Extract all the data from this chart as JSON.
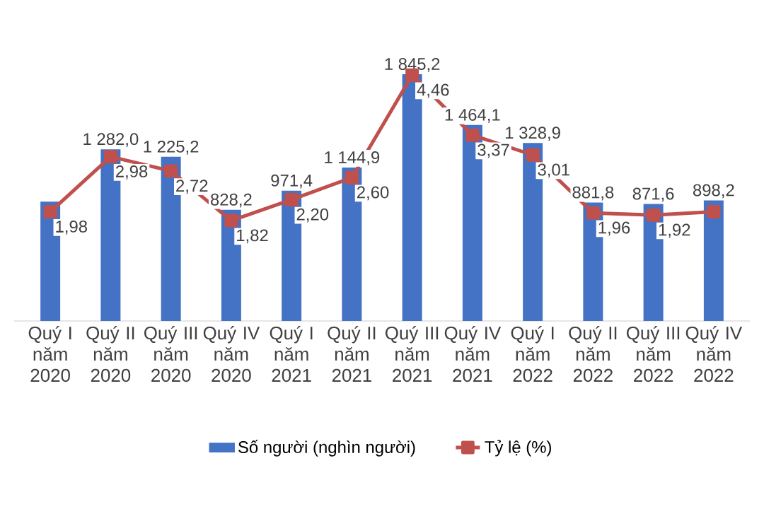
{
  "chart_data": {
    "type": "bar",
    "categories": [
      "Quý I năm 2020",
      "Quý II năm 2020",
      "Quý III năm 2020",
      "Quý IV năm 2020",
      "Quý I năm 2021",
      "Quý II năm 2021",
      "Quý III năm 2021",
      "Quý IV năm 2021",
      "Quý I năm 2022",
      "Quý II năm 2022",
      "Quý III năm 2022",
      "Quý IV năm 2022"
    ],
    "series": [
      {
        "name": "Số người (nghìn người)",
        "color": "#4472c4",
        "values": [
          889,
          1282.0,
          1225.2,
          828.2,
          971.4,
          1144.9,
          1845.2,
          1464.1,
          1328.9,
          881.8,
          871.6,
          898.2
        ],
        "value_labels": [
          null,
          "1 282,0",
          "1 225,2",
          "828,2",
          "971,4",
          "1 144,9",
          "1 845,2",
          "1 464,1",
          "1 328,9",
          "881,8",
          "871,6",
          "898,2"
        ]
      },
      {
        "name": "Tỷ lệ (%)",
        "type": "line",
        "axis": "y2",
        "marker": "square",
        "color": "#c0504d",
        "values": [
          1.98,
          2.98,
          2.72,
          1.82,
          2.2,
          2.6,
          4.46,
          3.37,
          3.01,
          1.96,
          1.92,
          1.98
        ],
        "value_labels": [
          "1,98",
          "2,98",
          "2,72",
          "1,82",
          "2,20",
          "2,60",
          "4,46",
          "3,37",
          "3,01",
          "1,96",
          "1,92",
          null
        ]
      }
    ],
    "legend": "bottom"
  }
}
